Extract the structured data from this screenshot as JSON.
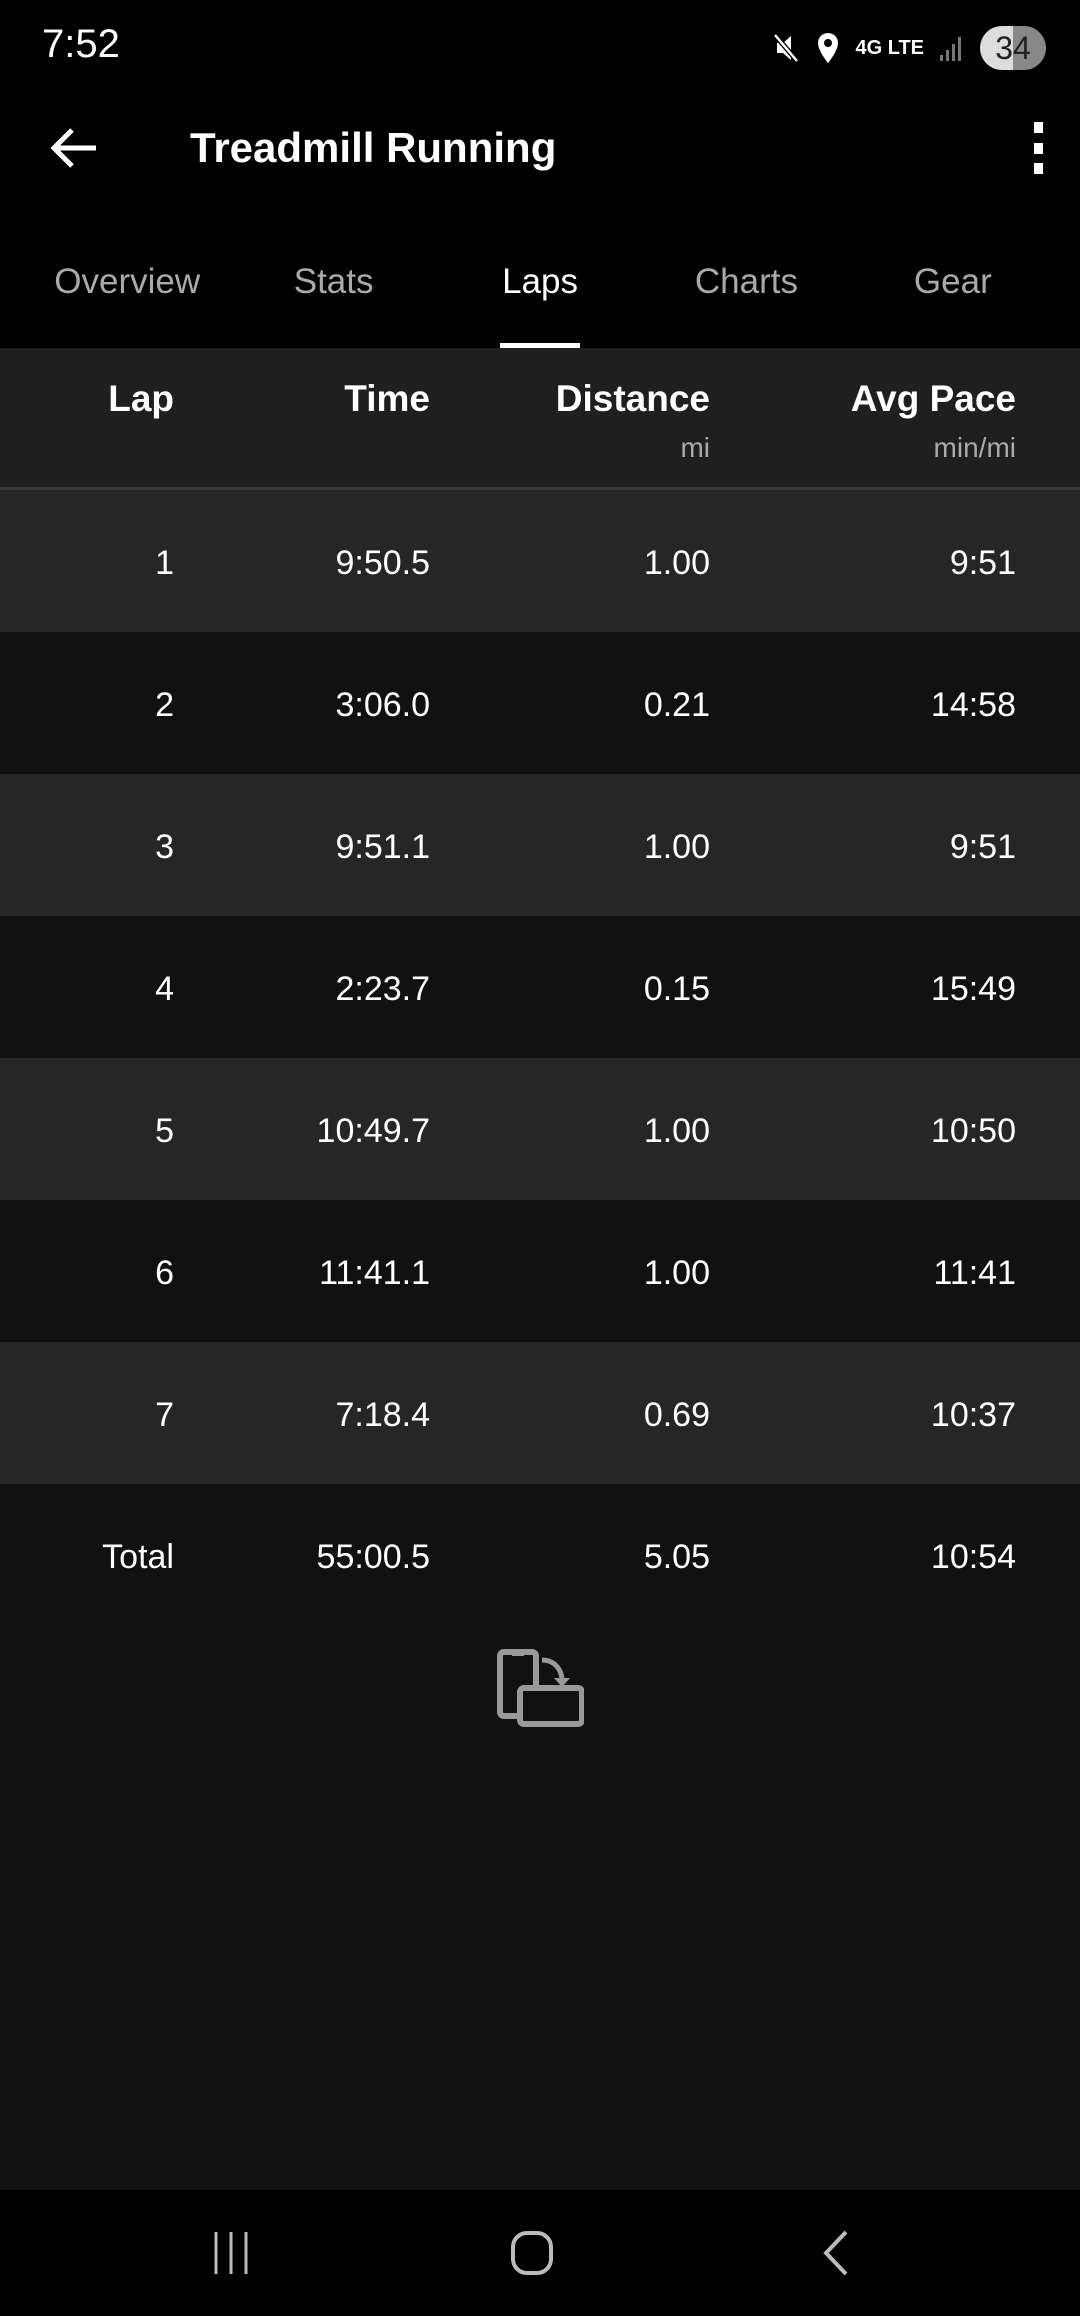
{
  "status_bar": {
    "time": "7:52",
    "network": "4G LTE",
    "battery": "34",
    "icons": [
      "mute-icon",
      "location-icon",
      "signal-icon"
    ]
  },
  "header": {
    "title": "Treadmill Running"
  },
  "tabs": [
    {
      "label": "Overview"
    },
    {
      "label": "Stats"
    },
    {
      "label": "Laps",
      "active": true
    },
    {
      "label": "Charts"
    },
    {
      "label": "Gear"
    }
  ],
  "table": {
    "columns": [
      {
        "label": "Lap",
        "unit": ""
      },
      {
        "label": "Time",
        "unit": ""
      },
      {
        "label": "Distance",
        "unit": "mi"
      },
      {
        "label": "Avg Pace",
        "unit": "min/mi"
      }
    ],
    "rows": [
      [
        "1",
        "9:50.5",
        "1.00",
        "9:51"
      ],
      [
        "2",
        "3:06.0",
        "0.21",
        "14:58"
      ],
      [
        "3",
        "9:51.1",
        "1.00",
        "9:51"
      ],
      [
        "4",
        "2:23.7",
        "0.15",
        "15:49"
      ],
      [
        "5",
        "10:49.7",
        "1.00",
        "10:50"
      ],
      [
        "6",
        "11:41.1",
        "1.00",
        "11:41"
      ],
      [
        "7",
        "7:18.4",
        "0.69",
        "10:37"
      ]
    ],
    "total": [
      "Total",
      "55:00.5",
      "5.05",
      "10:54"
    ]
  },
  "colors": {
    "row_odd": "#262626",
    "row_even": "#111111",
    "header_bg": "#1f1f1f"
  }
}
